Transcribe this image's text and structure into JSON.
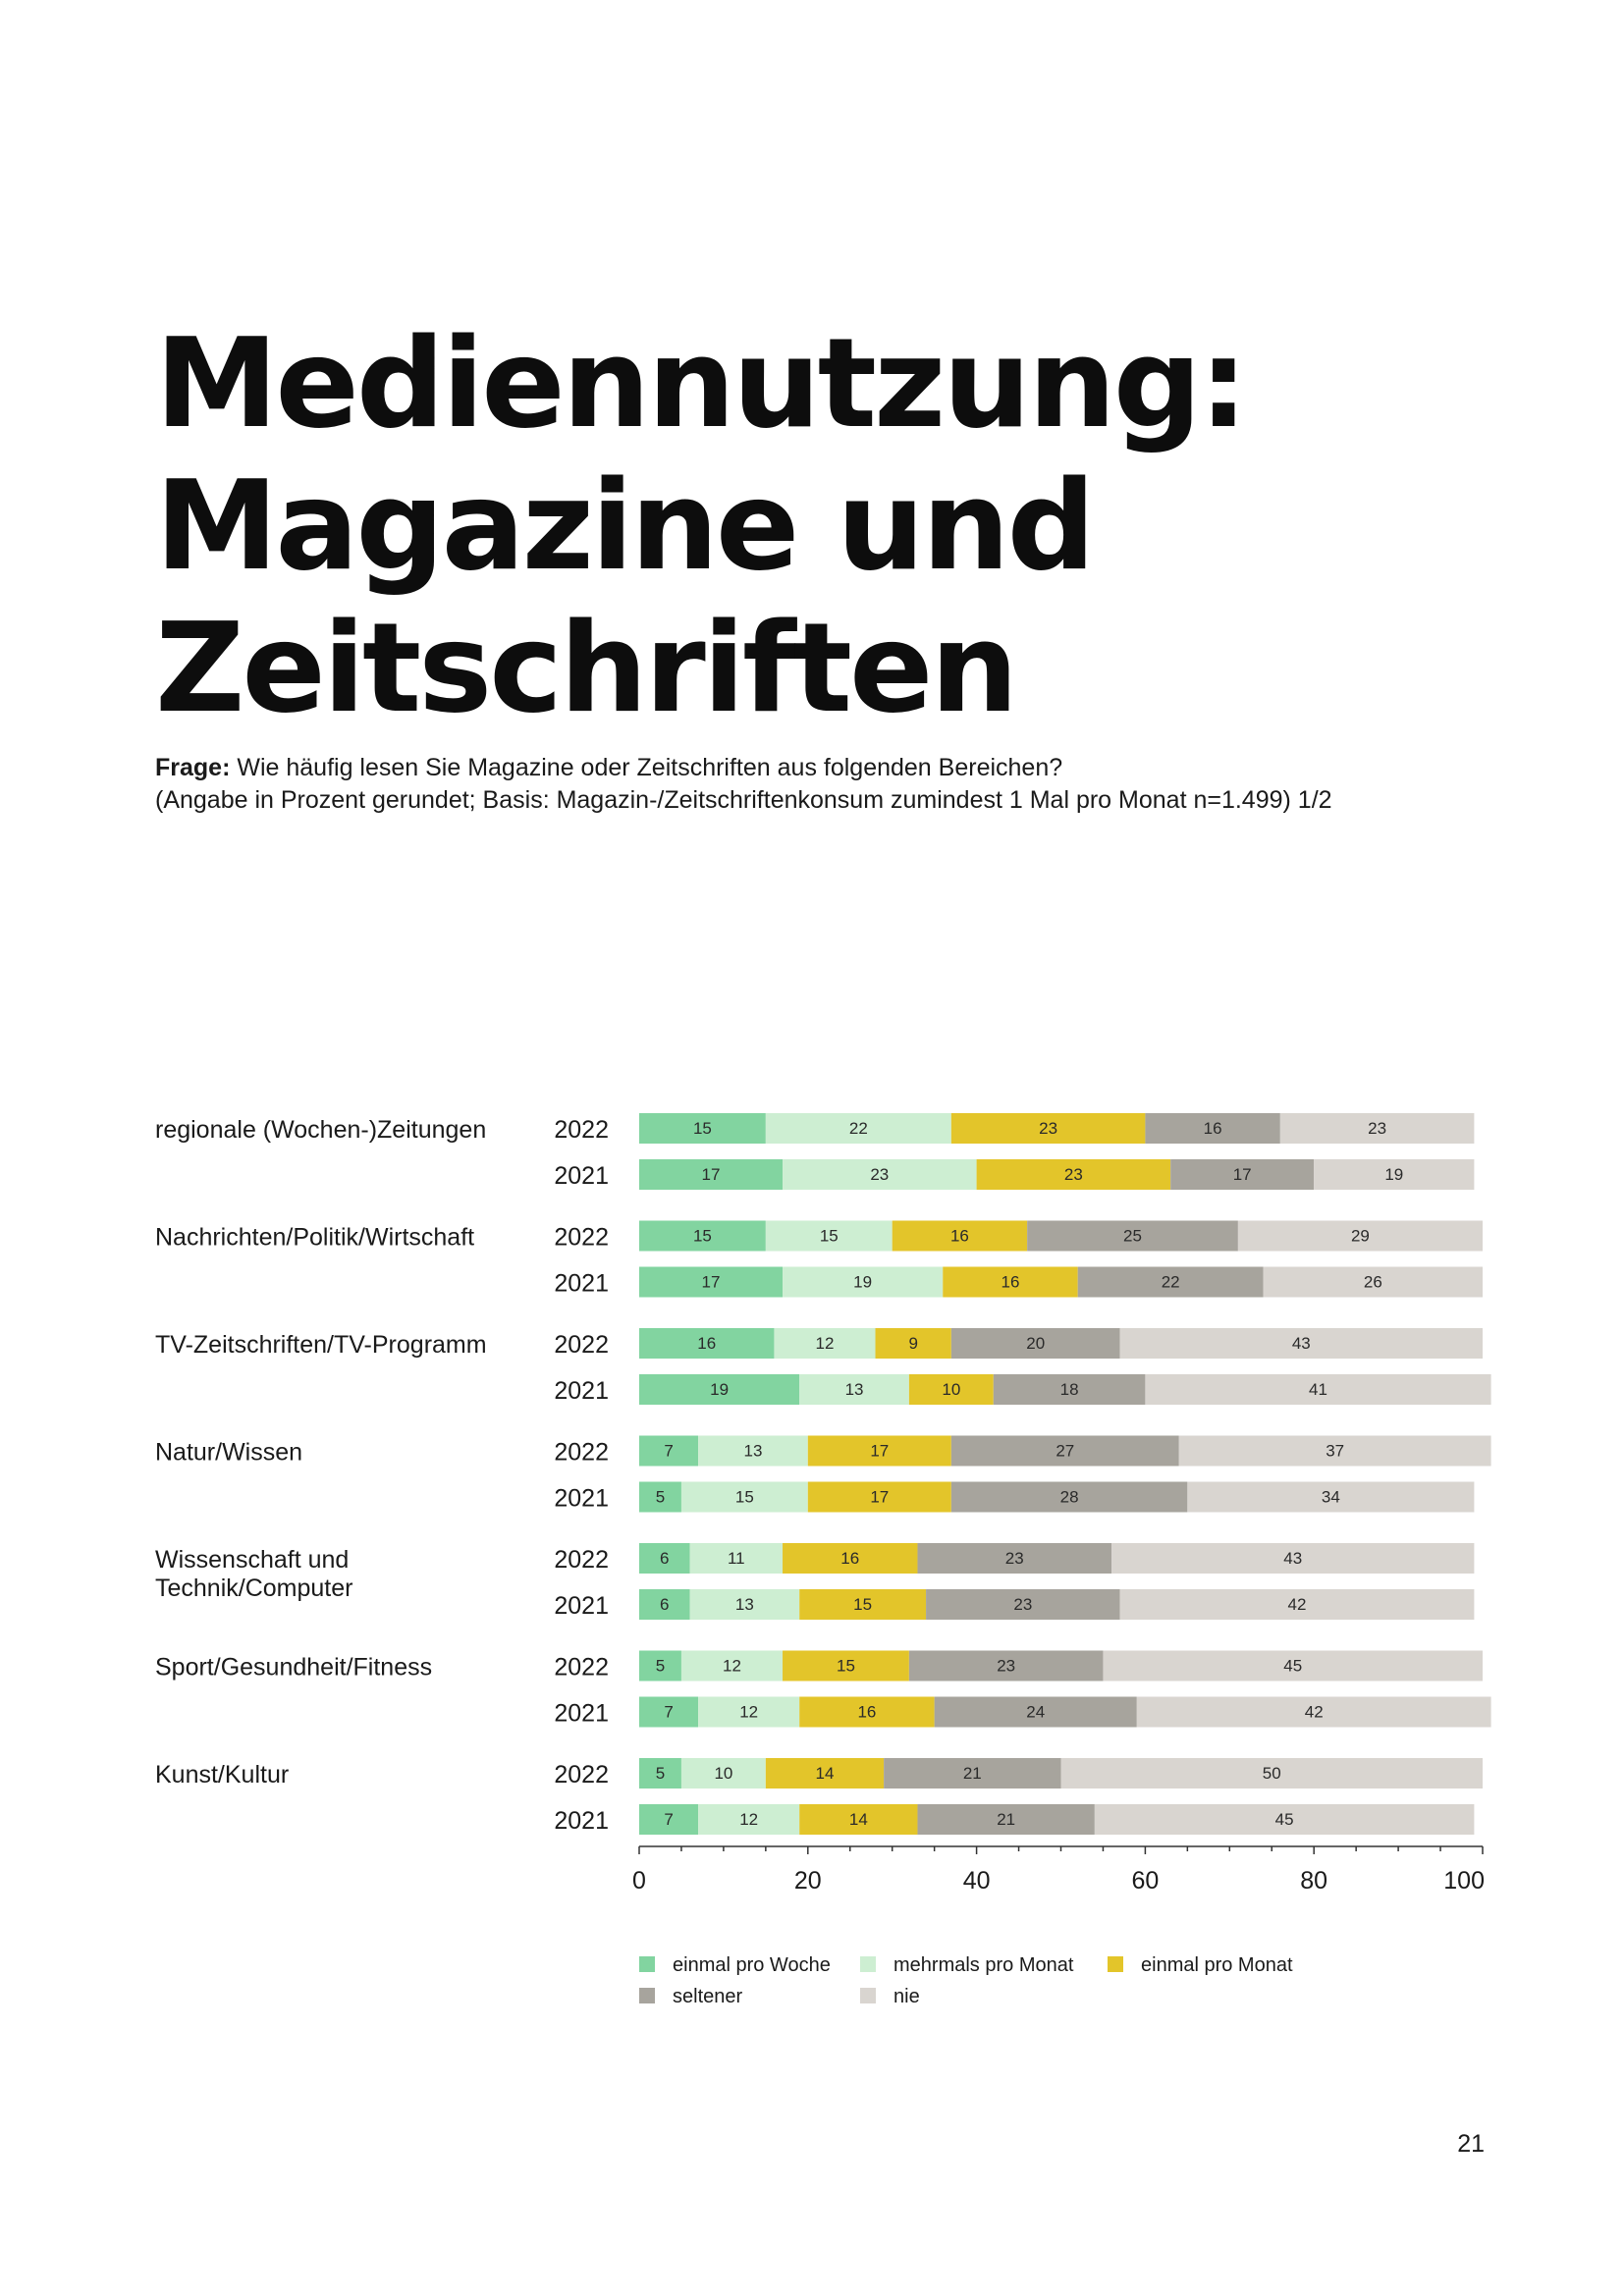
{
  "title_lines": [
    "Mediennutzung:",
    "Magazine und",
    "Zeitschriften"
  ],
  "question": {
    "label": "Frage:",
    "text": " Wie häufig lesen Sie Magazine oder Zeitschriften aus folgenden Bereichen?",
    "note": "(Angabe in Prozent gerundet; Basis: Magazin-/Zeitschriftenkonsum zumindest 1 Mal pro Monat n=1.499) 1/2"
  },
  "page_number": "21",
  "chart_data": {
    "type": "bar",
    "orientation": "horizontal",
    "stacked": true,
    "xlim": [
      0,
      100
    ],
    "xticks": [
      "0",
      "20",
      "40",
      "60",
      "80",
      "100"
    ],
    "series_names": [
      "einmal pro Woche",
      "mehrmals pro Monat",
      "einmal pro Monat",
      "seltener",
      "nie"
    ],
    "colors": [
      "#82d4a0",
      "#cdeed2",
      "#e3c52a",
      "#a7a49d",
      "#d9d5d0"
    ],
    "groups": [
      {
        "label_lines": [
          "regionale (Wochen-)Zeitungen"
        ],
        "rows": [
          {
            "year": "2022",
            "values": [
              15,
              22,
              23,
              16,
              23
            ]
          },
          {
            "year": "2021",
            "values": [
              17,
              23,
              23,
              17,
              19
            ]
          }
        ]
      },
      {
        "label_lines": [
          "Nachrichten/Politik/Wirtschaft"
        ],
        "rows": [
          {
            "year": "2022",
            "values": [
              15,
              15,
              16,
              25,
              29
            ]
          },
          {
            "year": "2021",
            "values": [
              17,
              19,
              16,
              22,
              26
            ]
          }
        ]
      },
      {
        "label_lines": [
          "TV-Zeitschriften/TV-Programm"
        ],
        "rows": [
          {
            "year": "2022",
            "values": [
              16,
              12,
              9,
              20,
              43
            ]
          },
          {
            "year": "2021",
            "values": [
              19,
              13,
              10,
              18,
              41
            ]
          }
        ]
      },
      {
        "label_lines": [
          "Natur/Wissen"
        ],
        "rows": [
          {
            "year": "2022",
            "values": [
              7,
              13,
              17,
              27,
              37
            ]
          },
          {
            "year": "2021",
            "values": [
              5,
              15,
              17,
              28,
              34
            ]
          }
        ]
      },
      {
        "label_lines": [
          "Wissenschaft und",
          "Technik/Computer"
        ],
        "rows": [
          {
            "year": "2022",
            "values": [
              6,
              11,
              16,
              23,
              43
            ]
          },
          {
            "year": "2021",
            "values": [
              6,
              13,
              15,
              23,
              42
            ]
          }
        ]
      },
      {
        "label_lines": [
          "Sport/Gesundheit/Fitness"
        ],
        "rows": [
          {
            "year": "2022",
            "values": [
              5,
              12,
              15,
              23,
              45
            ]
          },
          {
            "year": "2021",
            "values": [
              7,
              12,
              16,
              24,
              42
            ]
          }
        ]
      },
      {
        "label_lines": [
          "Kunst/Kultur"
        ],
        "rows": [
          {
            "year": "2022",
            "values": [
              5,
              10,
              14,
              21,
              50
            ]
          },
          {
            "year": "2021",
            "values": [
              7,
              12,
              14,
              21,
              45
            ]
          }
        ]
      }
    ]
  }
}
